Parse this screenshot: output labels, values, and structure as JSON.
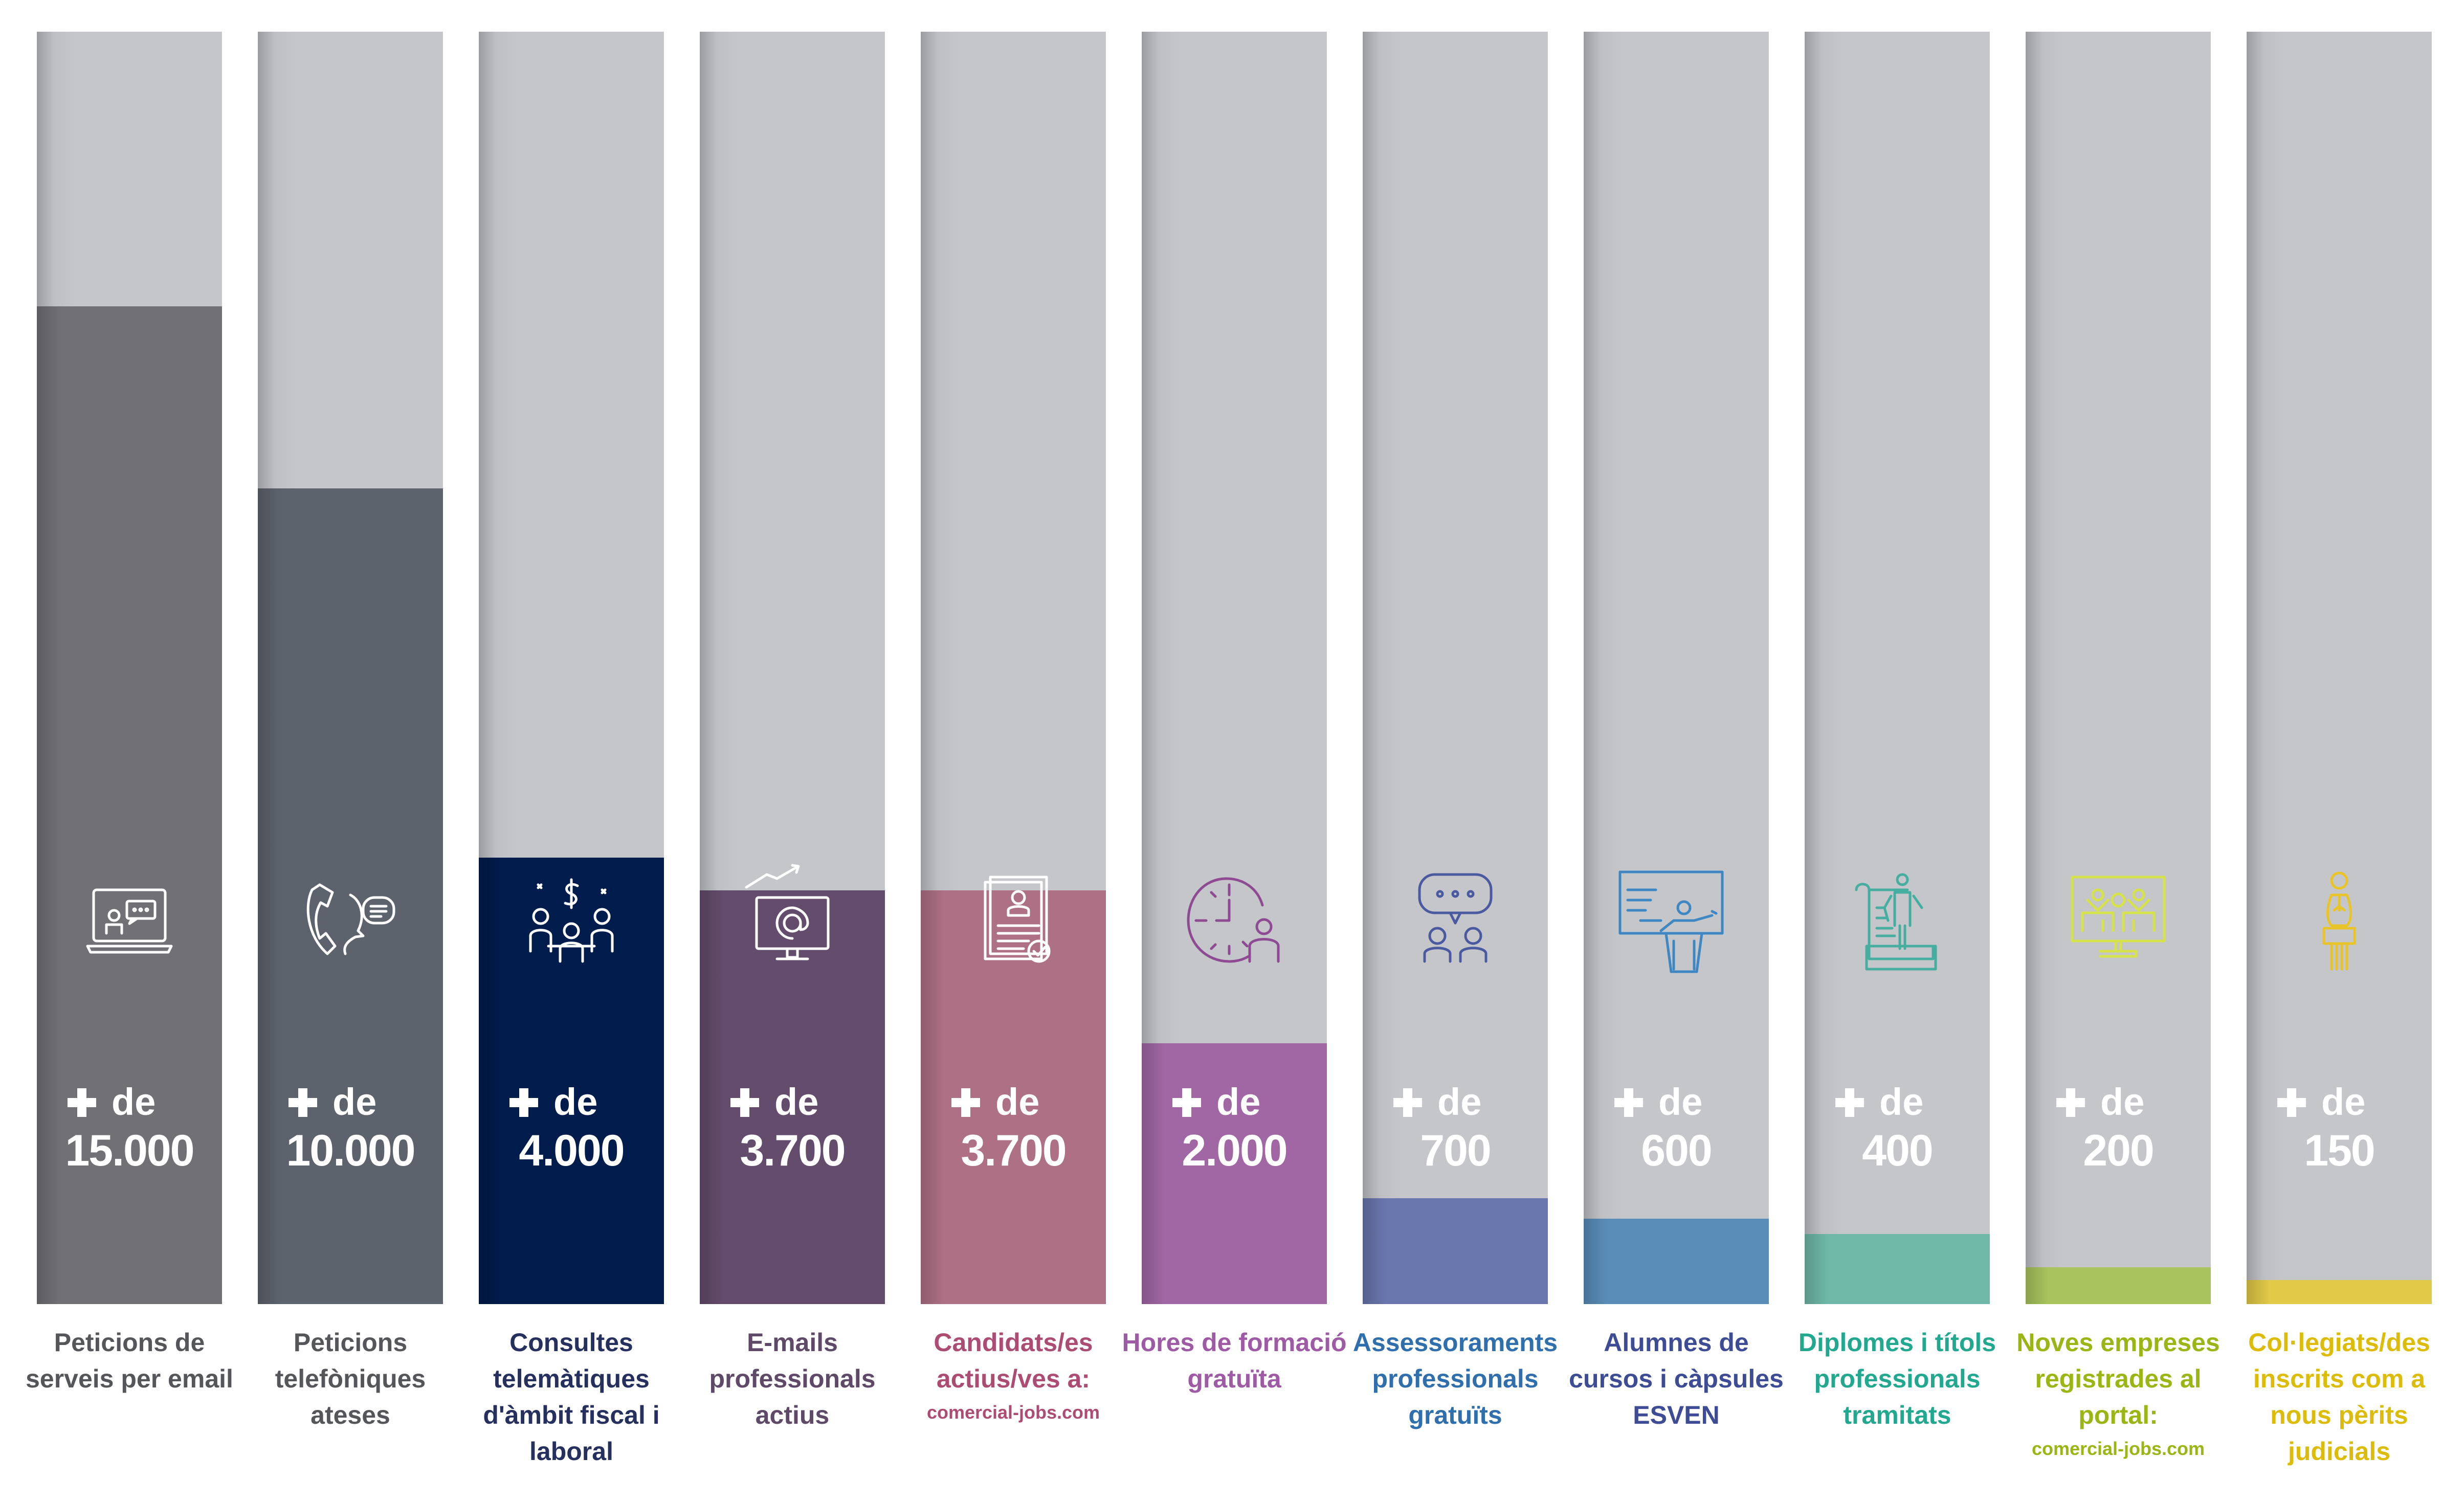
{
  "chart_data": {
    "type": "bar",
    "values": [
      15000,
      10000,
      4000,
      3700,
      3700,
      2000,
      700,
      600,
      400,
      200,
      150
    ],
    "bars": [
      {
        "prefix": "de",
        "value_label": "15.000",
        "value": 15000,
        "fill_fraction": 0.784,
        "label": "Peticions de serveis per email",
        "url": "",
        "color": "#717175",
        "icon": "laptop-chat-icon"
      },
      {
        "prefix": "de",
        "value_label": "10.000",
        "value": 10000,
        "fill_fraction": 0.641,
        "label": "Peticions telefòniques ateses",
        "url": "",
        "color": "#5d636d",
        "icon": "phone-call-icon"
      },
      {
        "prefix": "de",
        "value_label": "4.000",
        "value": 4000,
        "fill_fraction": 0.351,
        "label": "Consultes telemàtiques d'àmbit fiscal i laboral",
        "url": "",
        "color": "#001c4c",
        "icon": "meeting-money-icon"
      },
      {
        "prefix": "de",
        "value_label": "3.700",
        "value": 3700,
        "fill_fraction": 0.325,
        "label": "E-mails professionals actius",
        "url": "",
        "color": "#644c6c",
        "icon": "email-monitor-icon"
      },
      {
        "prefix": "de",
        "value_label": "3.700",
        "value": 3700,
        "fill_fraction": 0.325,
        "label": "Candidats/es actius/ves a:",
        "url": "comercial-jobs.com",
        "color": "#ae7085",
        "icon": "resume-icon"
      },
      {
        "prefix": "de",
        "value_label": "2.000",
        "value": 2000,
        "fill_fraction": 0.205,
        "label": "Hores de formació gratuïta",
        "url": "",
        "color": "#a167a5",
        "icon": "clock-person-icon"
      },
      {
        "prefix": "de",
        "value_label": "700",
        "value": 700,
        "fill_fraction": 0.083,
        "label": "Assessoraments professionals gratuïts",
        "url": "",
        "color": "#6a76ae",
        "icon": "consulting-people-icon"
      },
      {
        "prefix": "de",
        "value_label": "600",
        "value": 600,
        "fill_fraction": 0.067,
        "label": "Alumnes de cursos i càpsules ESVEN",
        "url": "",
        "color": "#598db8",
        "icon": "lecture-podium-icon"
      },
      {
        "prefix": "de",
        "value_label": "400",
        "value": 400,
        "fill_fraction": 0.055,
        "label": "Diplomes i títols professionals tramitats",
        "url": "",
        "color": "#6fb8a8",
        "icon": "diploma-person-icon"
      },
      {
        "prefix": "de",
        "value_label": "200",
        "value": 200,
        "fill_fraction": 0.029,
        "label": "Noves empreses registrades al portal:",
        "url": "comercial-jobs.com",
        "color": "#a9c45e",
        "icon": "company-portal-icon"
      },
      {
        "prefix": "de",
        "value_label": "150",
        "value": 150,
        "fill_fraction": 0.019,
        "label": "Col·legiats/des inscrits com a nous pèrits judicials",
        "url": "",
        "color": "#e1ca48",
        "icon": "judge-expert-icon"
      }
    ],
    "label_colors": [
      "#54565a",
      "#54565a",
      "#26305f",
      "#5e4a68",
      "#ad4c72",
      "#9f5aa5",
      "#2f6fad",
      "#3d4c95",
      "#22a88e",
      "#9bb514",
      "#dcbc08"
    ],
    "icon_colors": [
      "#ffffff",
      "#ffffff",
      "#ffffff",
      "#ffffff",
      "#ffffff",
      "#8e4a93",
      "#4a5aa0",
      "#3e87c3",
      "#45aea0",
      "#d6e24a",
      "#e9c429"
    ],
    "track_color": "#c5c6ca"
  }
}
